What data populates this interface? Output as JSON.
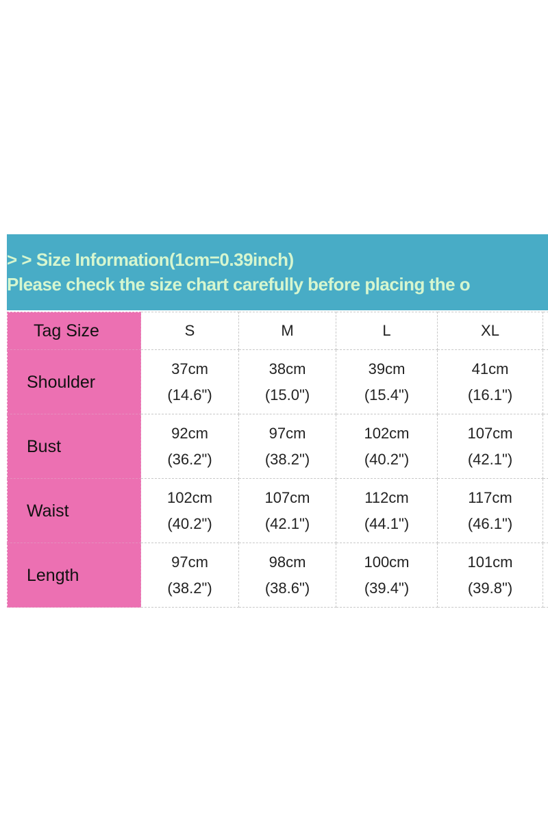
{
  "banner": {
    "line1": "> > Size Information(1cm=0.39inch)",
    "line2": "Please check the size chart carefully before placing the o"
  },
  "colors": {
    "banner": "#48acc6",
    "banner_text": "#d6f6cf",
    "label_cells": "#ec70b2"
  },
  "table": {
    "header": {
      "label": "Tag Size",
      "sizes": [
        "S",
        "M",
        "L",
        "XL"
      ]
    },
    "rows": [
      {
        "label": "Shoulder",
        "cm": [
          "37cm",
          "38cm",
          "39cm",
          "41cm"
        ],
        "inch": [
          "(14.6\")",
          "(15.0\")",
          "(15.4\")",
          "(16.1\")"
        ]
      },
      {
        "label": "Bust",
        "cm": [
          "92cm",
          "97cm",
          "102cm",
          "107cm"
        ],
        "inch": [
          "(36.2\")",
          "(38.2\")",
          "(40.2\")",
          "(42.1\")"
        ]
      },
      {
        "label": "Waist",
        "cm": [
          "102cm",
          "107cm",
          "112cm",
          "117cm"
        ],
        "inch": [
          "(40.2\")",
          "(42.1\")",
          "(44.1\")",
          "(46.1\")"
        ]
      },
      {
        "label": "Length",
        "cm": [
          "97cm",
          "98cm",
          "100cm",
          "101cm"
        ],
        "inch": [
          "(38.2\")",
          "(38.6\")",
          "(39.4\")",
          "(39.8\")"
        ]
      }
    ]
  }
}
